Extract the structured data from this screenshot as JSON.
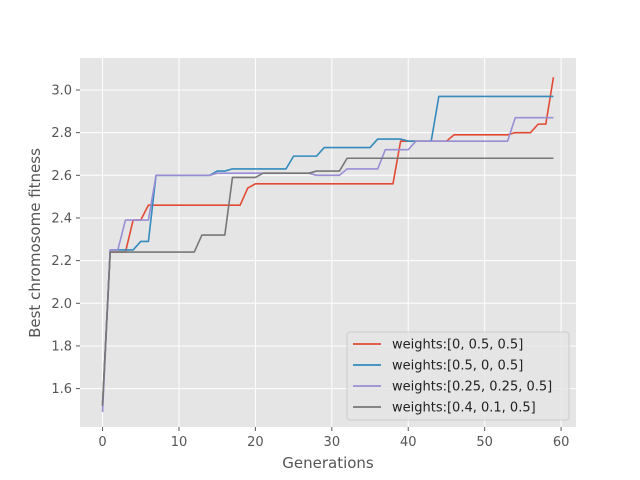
{
  "chart_data": {
    "type": "line",
    "title": "",
    "xlabel": "Generations",
    "ylabel": "Best chromosome fitness",
    "xlim": [
      -2.95,
      61.95
    ],
    "ylim": [
      1.42,
      3.15
    ],
    "xticks": [
      0,
      10,
      20,
      30,
      40,
      50,
      60
    ],
    "yticks": [
      1.6,
      1.8,
      2.0,
      2.2,
      2.4,
      2.6,
      2.8,
      3.0
    ],
    "xtick_labels": [
      "0",
      "10",
      "20",
      "30",
      "40",
      "50",
      "60"
    ],
    "ytick_labels": [
      "1.6",
      "1.8",
      "2.0",
      "2.2",
      "2.4",
      "2.6",
      "2.8",
      "3.0"
    ],
    "grid": true,
    "legend_position": "lower-right",
    "colors": {
      "background": "#e5e5e5",
      "grid": "#ffffff",
      "tick": "#555555"
    },
    "series": [
      {
        "name": "weights:[0, 0.5, 0.5]",
        "color": "#e24a33",
        "points": [
          [
            0,
            1.53
          ],
          [
            1,
            2.24
          ],
          [
            3,
            2.24
          ],
          [
            4,
            2.39
          ],
          [
            5,
            2.39
          ],
          [
            6,
            2.46
          ],
          [
            10,
            2.46
          ],
          [
            11,
            2.46
          ],
          [
            18,
            2.46
          ],
          [
            19,
            2.54
          ],
          [
            20,
            2.56
          ],
          [
            38,
            2.56
          ],
          [
            39,
            2.76
          ],
          [
            45,
            2.76
          ],
          [
            46,
            2.79
          ],
          [
            53,
            2.79
          ],
          [
            54,
            2.8
          ],
          [
            56,
            2.8
          ],
          [
            57,
            2.84
          ],
          [
            58,
            2.84
          ],
          [
            59,
            3.06
          ]
        ]
      },
      {
        "name": "weights:[0.5, 0, 0.5]",
        "color": "#348abd",
        "points": [
          [
            0,
            1.52
          ],
          [
            1,
            2.25
          ],
          [
            4,
            2.25
          ],
          [
            5,
            2.29
          ],
          [
            6,
            2.29
          ],
          [
            7,
            2.6
          ],
          [
            14,
            2.6
          ],
          [
            15,
            2.62
          ],
          [
            16,
            2.62
          ],
          [
            17,
            2.63
          ],
          [
            24,
            2.63
          ],
          [
            25,
            2.69
          ],
          [
            28,
            2.69
          ],
          [
            29,
            2.73
          ],
          [
            35,
            2.73
          ],
          [
            36,
            2.77
          ],
          [
            39,
            2.77
          ],
          [
            40,
            2.76
          ],
          [
            43,
            2.76
          ],
          [
            44,
            2.97
          ],
          [
            59,
            2.97
          ]
        ]
      },
      {
        "name": "weights:[0.25, 0.25, 0.5]",
        "color": "#988ed5",
        "points": [
          [
            0,
            1.49
          ],
          [
            1,
            2.25
          ],
          [
            2,
            2.25
          ],
          [
            3,
            2.39
          ],
          [
            6,
            2.39
          ],
          [
            7,
            2.6
          ],
          [
            14,
            2.6
          ],
          [
            15,
            2.61
          ],
          [
            27,
            2.61
          ],
          [
            28,
            2.6
          ],
          [
            31,
            2.6
          ],
          [
            32,
            2.63
          ],
          [
            36,
            2.63
          ],
          [
            37,
            2.72
          ],
          [
            40,
            2.72
          ],
          [
            41,
            2.76
          ],
          [
            53,
            2.76
          ],
          [
            54,
            2.87
          ],
          [
            59,
            2.87
          ]
        ]
      },
      {
        "name": "weights:[0.4, 0.1, 0.5]",
        "color": "#777777",
        "points": [
          [
            0,
            1.52
          ],
          [
            1,
            2.24
          ],
          [
            12,
            2.24
          ],
          [
            13,
            2.32
          ],
          [
            16,
            2.32
          ],
          [
            17,
            2.59
          ],
          [
            20,
            2.59
          ],
          [
            21,
            2.61
          ],
          [
            27,
            2.61
          ],
          [
            28,
            2.62
          ],
          [
            31,
            2.62
          ],
          [
            32,
            2.68
          ],
          [
            59,
            2.68
          ]
        ]
      }
    ]
  }
}
